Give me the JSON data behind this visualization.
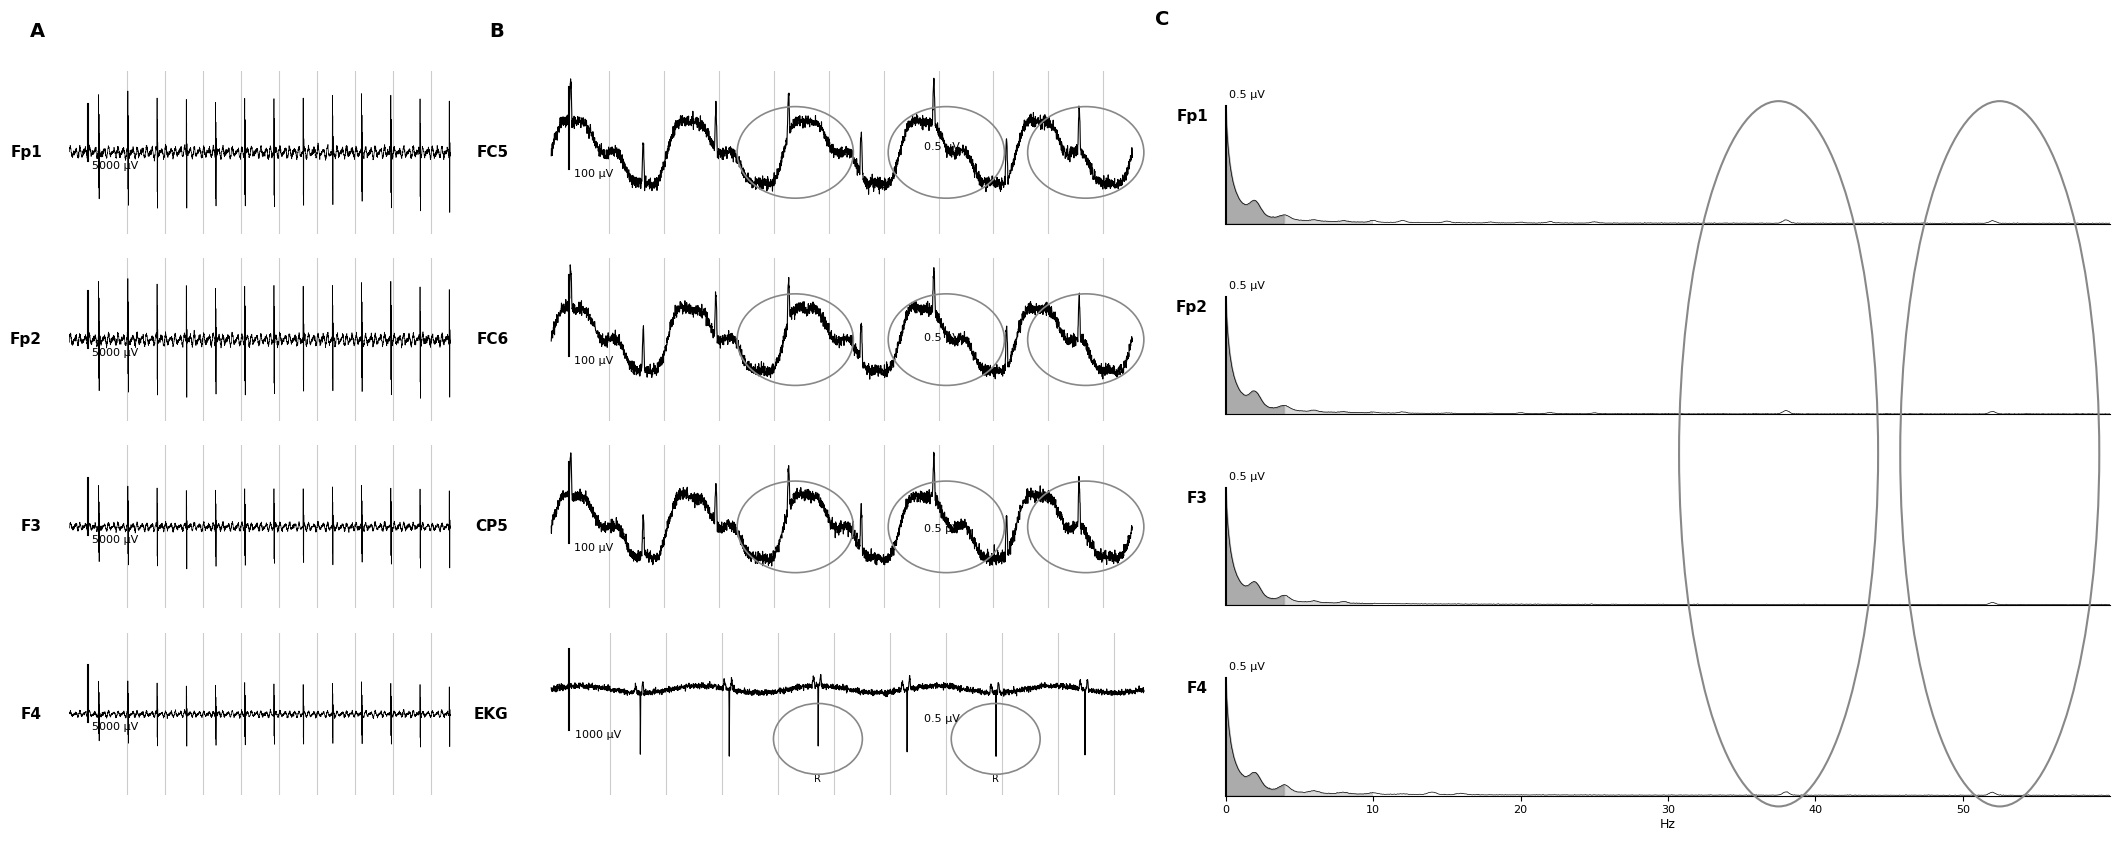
{
  "panel_A_labels": [
    "Fp1",
    "Fp2",
    "F3",
    "F4"
  ],
  "panel_A_scale": "5000 μV",
  "panel_B_labels": [
    "FC5",
    "FC6",
    "CP5",
    "EKG"
  ],
  "panel_B_scales": [
    "100 μV",
    "100 μV",
    "100 μV",
    "1000 μV"
  ],
  "panel_C_labels": [
    "Fp1",
    "Fp2",
    "F3",
    "F4"
  ],
  "panel_C_scale": "0.5 μV",
  "panel_C_xlabel": "Hz",
  "panel_C_xticks": [
    0,
    10,
    20,
    30,
    40,
    50
  ],
  "background_color": "#ffffff",
  "signal_color": "#000000",
  "grid_color": "#cccccc",
  "circle_color": "#888888",
  "label_fontsize": 11,
  "panel_label_fontsize": 14,
  "scale_fontsize": 8
}
